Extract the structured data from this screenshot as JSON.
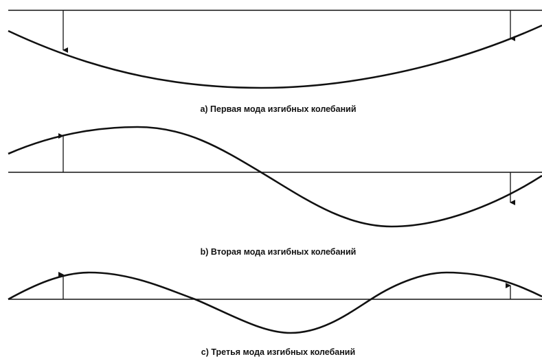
{
  "figure": {
    "colors": {
      "ink": "#111111",
      "background": "#ffffff"
    },
    "panels": [
      {
        "caption": "а) Первая мода изгибных колебаний",
        "mode": 1
      },
      {
        "caption": "b) Вторая мода изгибных колебаний",
        "mode": 2
      },
      {
        "caption": "c) Третья мода изгибных колебаний",
        "mode": 3
      }
    ]
  }
}
